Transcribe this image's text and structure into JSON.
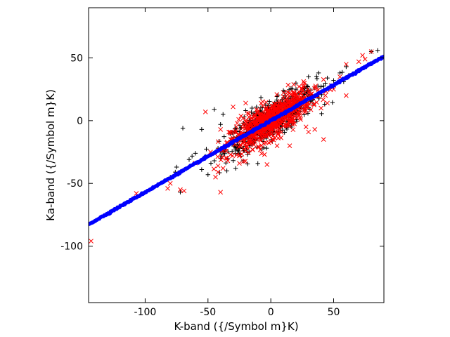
{
  "chart_data": {
    "type": "scatter",
    "xlabel": "K-band ({/Symbol m}K)",
    "ylabel": "Ka-band ({/Symbol m}K)",
    "xlim": [
      -145,
      90
    ],
    "ylim": [
      -145,
      90
    ],
    "xticks": [
      -100,
      -50,
      0,
      50
    ],
    "xtick_labels": [
      "-100",
      "-50",
      "0",
      "50"
    ],
    "yticks": [
      -100,
      -50,
      0,
      50
    ],
    "ytick_labels": [
      "-100",
      "-50",
      "0",
      "50"
    ],
    "grid": false,
    "legend": "none",
    "series": [
      {
        "marker": "plus",
        "color": "#000000",
        "cloud": {
          "center": [
            0,
            0
          ],
          "count": 700,
          "spread_x": 18,
          "slope": 0.58,
          "spread_y": 7
        },
        "points": [
          [
            85,
            56
          ],
          [
            80,
            55
          ],
          [
            62,
            36
          ],
          [
            60,
            43
          ],
          [
            55,
            38
          ],
          [
            58,
            31
          ],
          [
            50,
            32
          ],
          [
            45,
            34
          ],
          [
            40,
            27
          ],
          [
            35,
            26
          ],
          [
            28,
            22
          ],
          [
            -38,
            5
          ],
          [
            -40,
            -3
          ],
          [
            -45,
            9
          ],
          [
            -55,
            -7
          ],
          [
            -70,
            -6
          ],
          [
            -60,
            -26
          ],
          [
            -65,
            -31
          ],
          [
            -75,
            -37
          ],
          [
            -76,
            -41
          ],
          [
            -80,
            -45
          ],
          [
            -50,
            -43
          ],
          [
            -55,
            -39
          ],
          [
            -35,
            -40
          ],
          [
            -28,
            -38
          ],
          [
            -22,
            -32
          ],
          [
            -45,
            -32
          ],
          [
            -42,
            -22
          ],
          [
            -72,
            -57
          ],
          [
            20,
            30
          ],
          [
            10,
            24
          ],
          [
            30,
            35
          ],
          [
            38,
            38
          ],
          [
            25,
            18
          ],
          [
            -15,
            10
          ],
          [
            -20,
            8
          ],
          [
            -25,
            -20
          ],
          [
            -30,
            -15
          ]
        ]
      },
      {
        "marker": "x",
        "color": "#ff0000",
        "cloud": {
          "center": [
            0,
            0
          ],
          "count": 700,
          "spread_x": 16,
          "slope": 0.58,
          "spread_y": 7
        },
        "points": [
          [
            -143,
            -96
          ],
          [
            -107,
            -58
          ],
          [
            -82,
            -54
          ],
          [
            -80,
            -50
          ],
          [
            -72,
            -55
          ],
          [
            -69,
            -56
          ],
          [
            -52,
            7
          ],
          [
            -40,
            -57
          ],
          [
            -42,
            -41
          ],
          [
            -44,
            -45
          ],
          [
            -38,
            -38
          ],
          [
            -42,
            -36
          ],
          [
            -35,
            -30
          ],
          [
            -25,
            -28
          ],
          [
            -25,
            -34
          ],
          [
            -5,
            -27
          ],
          [
            -3,
            -35
          ],
          [
            -40,
            -7
          ],
          [
            -35,
            -18
          ],
          [
            -32,
            -15
          ],
          [
            -30,
            11
          ],
          [
            -20,
            14
          ],
          [
            10,
            19
          ],
          [
            15,
            22
          ],
          [
            18,
            23
          ],
          [
            20,
            18
          ],
          [
            25,
            17
          ],
          [
            15,
            -20
          ],
          [
            5,
            -20
          ],
          [
            28,
            -5
          ],
          [
            30,
            -9
          ],
          [
            42,
            -15
          ],
          [
            40,
            10
          ],
          [
            35,
            -7
          ],
          [
            50,
            25
          ],
          [
            60,
            20
          ],
          [
            55,
            35
          ],
          [
            60,
            45
          ],
          [
            70,
            47
          ],
          [
            73,
            52
          ],
          [
            75,
            49
          ],
          [
            80,
            55
          ],
          [
            48,
            28
          ],
          [
            45,
            14
          ]
        ]
      },
      {
        "marker": "line-points",
        "color": "#0000ff",
        "fit": {
          "slope": 0.57,
          "intercept": 0.0,
          "x_range": [
            -145,
            90
          ]
        }
      }
    ]
  }
}
